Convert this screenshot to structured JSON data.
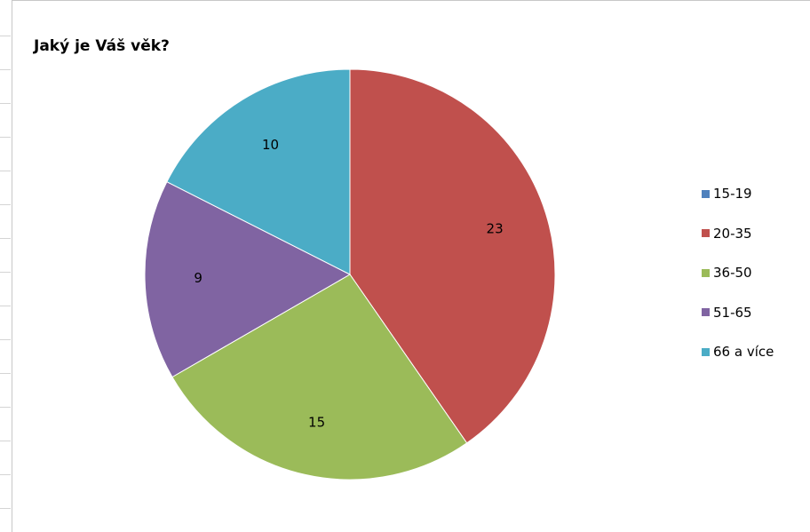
{
  "chart_data": {
    "type": "pie",
    "title": "Jaký je Váš věk?",
    "categories": [
      "15-19",
      "20-35",
      "36-50",
      "51-65",
      "66 a více"
    ],
    "values": [
      0,
      23,
      15,
      9,
      10
    ],
    "colors": [
      "#4f81bd",
      "#c0504d",
      "#9bbb59",
      "#8064a2",
      "#4bacc6"
    ],
    "data_labels": [
      "",
      "23",
      "15",
      "9",
      "10"
    ],
    "legend_position": "right"
  }
}
